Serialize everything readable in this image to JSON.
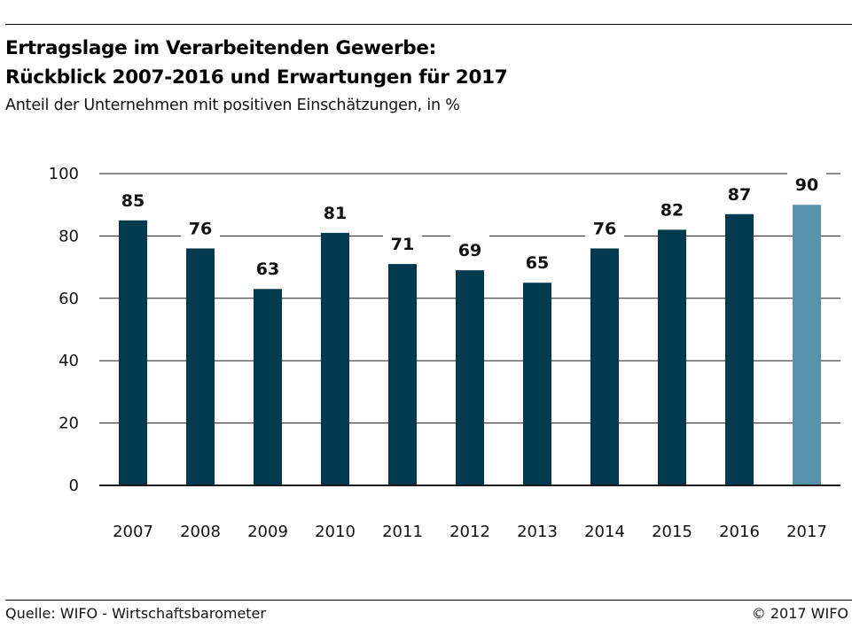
{
  "title_line1": "Ertragslage im Verarbeitenden Gewerbe:",
  "title_line2": "Rückblick 2007-2016 und Erwartungen für 2017",
  "subtitle": "Anteil der Unternehmen mit positiven Einschätzungen, in %",
  "source": "Quelle: WIFO - Wirtschaftsbarometer",
  "copyright": "© 2017 WIFO",
  "colors": {
    "actual": "#003a4f",
    "expectation": "#5893ab",
    "grid": "#1a1a1a"
  },
  "chart_data": {
    "type": "bar",
    "categories": [
      "2007",
      "2008",
      "2009",
      "2010",
      "2011",
      "2012",
      "2013",
      "2014",
      "2015",
      "2016",
      "2017"
    ],
    "values": [
      85,
      76,
      63,
      81,
      71,
      69,
      65,
      76,
      82,
      87,
      90
    ],
    "data_labels": [
      "85",
      "76",
      "63",
      "81",
      "71",
      "69",
      "65",
      "76",
      "82",
      "87",
      "90"
    ],
    "highlight_category": "2017",
    "yticks": [
      "0",
      "20",
      "40",
      "60",
      "80",
      "100"
    ],
    "ylim": [
      0,
      100
    ],
    "grid": true,
    "xlabel": "",
    "ylabel": ""
  }
}
